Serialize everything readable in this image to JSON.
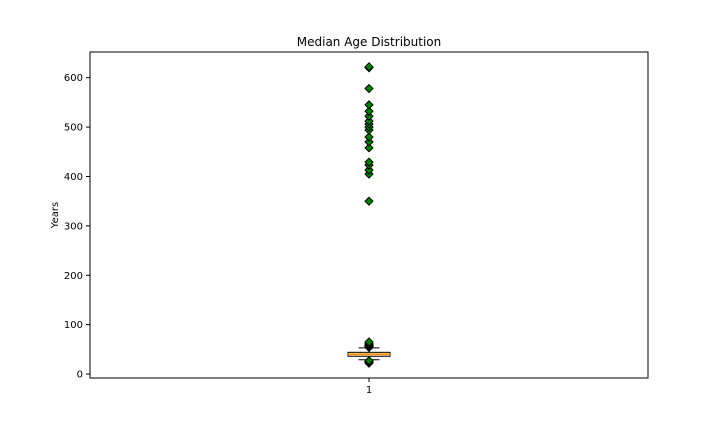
{
  "chart_data": {
    "type": "box",
    "title": "Median Age Distribution",
    "xlabel": "",
    "ylabel": "Years",
    "categories": [
      "1"
    ],
    "ylim": [
      -8,
      652
    ],
    "yticks": [
      0,
      100,
      200,
      300,
      400,
      500,
      600
    ],
    "grid": false,
    "box": {
      "whisker_low": 29,
      "q1": 36,
      "median": 40,
      "q3": 44,
      "whisker_high": 53
    },
    "outliers": [
      22,
      24,
      25,
      26,
      27,
      54,
      55,
      56,
      57,
      58,
      60,
      62,
      65,
      350,
      405,
      413,
      423,
      429,
      458,
      470,
      480,
      494,
      500,
      506,
      512,
      522,
      532,
      545,
      578,
      620,
      622
    ],
    "colors": {
      "box_fill": "#ffe4b5",
      "median_line": "#ff8c00",
      "outlier_fill": "#008000",
      "outlier_edge": "#000000"
    }
  }
}
